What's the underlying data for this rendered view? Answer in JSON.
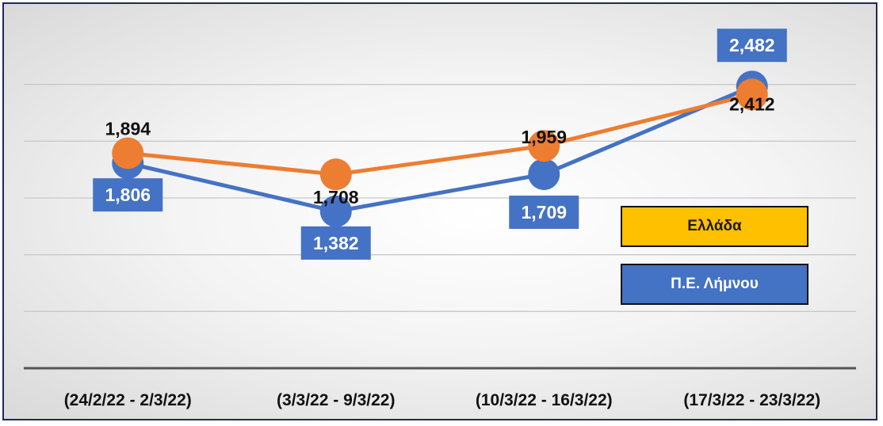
{
  "chart_data": {
    "type": "line",
    "categories": [
      "(24/2/22 - 2/3/22)",
      "(3/3/22 - 9/3/22)",
      "(10/3/22 - 16/3/22)",
      "(17/3/22 - 23/3/22)"
    ],
    "series": [
      {
        "name": "Ελλάδα",
        "values": [
          1894,
          1708,
          1959,
          2412
        ],
        "labels": [
          "1,894",
          "1,708",
          "1,959",
          "2,412"
        ],
        "color": "#ed7d31"
      },
      {
        "name": "Π.Ε. Λήμνου",
        "values": [
          1806,
          1382,
          1709,
          2482
        ],
        "labels": [
          "1,806",
          "1,382",
          "1,709",
          "2,482"
        ],
        "color": "#4472c4"
      }
    ],
    "legend": {
      "placement": "right",
      "colors": [
        "#ffc000",
        "#4472c4"
      ]
    },
    "grid": true,
    "ylim": [
      0,
      3000
    ]
  }
}
